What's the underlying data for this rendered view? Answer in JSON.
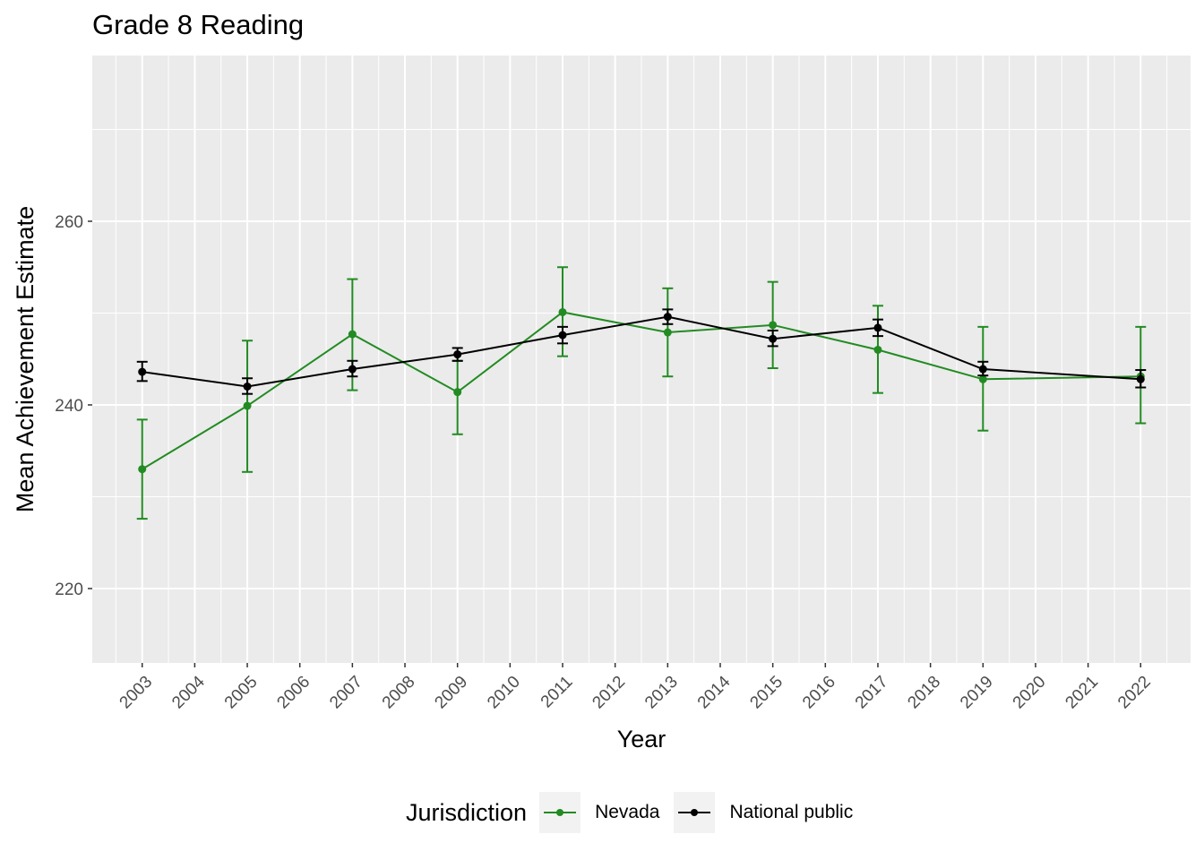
{
  "chart_data": {
    "type": "line",
    "title": "Grade 8 Reading",
    "xlabel": "Year",
    "ylabel": "Mean Achievement Estimate",
    "xlim": [
      2002.05,
      2022.95
    ],
    "ylim": [
      211.9,
      278.05
    ],
    "x_ticks": [
      2003,
      2004,
      2005,
      2006,
      2007,
      2008,
      2009,
      2010,
      2011,
      2012,
      2013,
      2014,
      2015,
      2016,
      2017,
      2018,
      2019,
      2020,
      2021,
      2022
    ],
    "y_ticks": [
      220,
      240,
      260
    ],
    "grid": true,
    "legend_title": "Jurisdiction",
    "legend_position": "bottom",
    "x": [
      2003,
      2005,
      2007,
      2009,
      2011,
      2013,
      2015,
      2017,
      2019,
      2022
    ],
    "series": [
      {
        "name": "Nevada",
        "color": "#228B22",
        "values": [
          233.0,
          239.9,
          247.7,
          241.4,
          250.1,
          247.9,
          248.7,
          246.0,
          242.8,
          243.1
        ],
        "lower": [
          227.6,
          232.7,
          241.6,
          236.8,
          245.3,
          243.1,
          244.0,
          241.3,
          237.2,
          238.0
        ],
        "upper": [
          238.4,
          247.0,
          253.7,
          244.8,
          255.0,
          252.7,
          253.4,
          250.8,
          248.5,
          248.5
        ]
      },
      {
        "name": "National public",
        "color": "#000000",
        "values": [
          243.6,
          242.0,
          243.9,
          245.5,
          247.6,
          249.6,
          247.2,
          248.4,
          243.9,
          242.8
        ],
        "lower": [
          242.6,
          241.2,
          243.1,
          244.8,
          246.7,
          248.8,
          246.4,
          247.5,
          243.2,
          241.9
        ],
        "upper": [
          244.7,
          242.9,
          244.8,
          246.2,
          248.5,
          250.4,
          248.1,
          249.3,
          244.7,
          243.8
        ]
      }
    ]
  }
}
